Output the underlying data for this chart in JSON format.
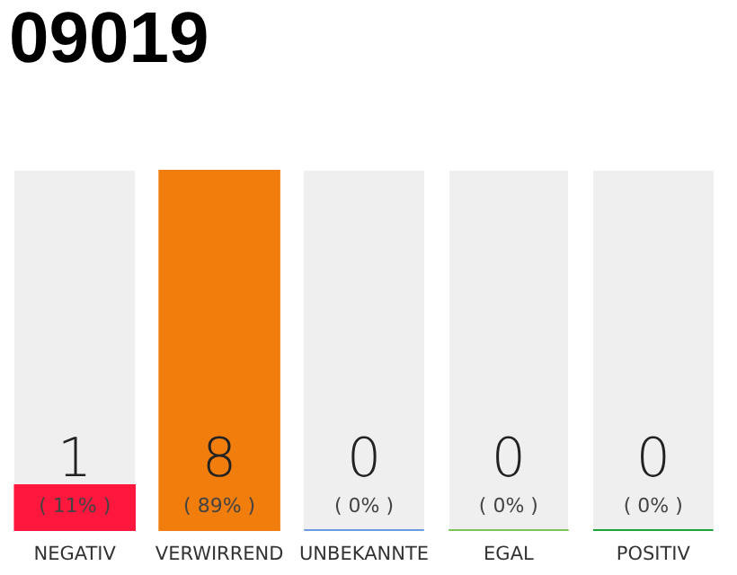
{
  "chart_data": {
    "type": "bar",
    "title": "09019",
    "categories": [
      "NEGATIV",
      "VERWIRREND",
      "UNBEKANNTE",
      "EGAL",
      "POSITIV"
    ],
    "values": [
      1,
      8,
      0,
      0,
      0
    ],
    "colors": [
      "#ff173d",
      "#f07d0c",
      "#6a9be0",
      "#7cc35a",
      "#1aa33a"
    ],
    "ylim": [
      0,
      8
    ],
    "data_labels": true,
    "tick_labels": "x",
    "grid": false,
    "annotations": [
      "( 11% )",
      "( 89% )",
      "( 0% )",
      "( 0% )",
      "( 0% )"
    ]
  }
}
